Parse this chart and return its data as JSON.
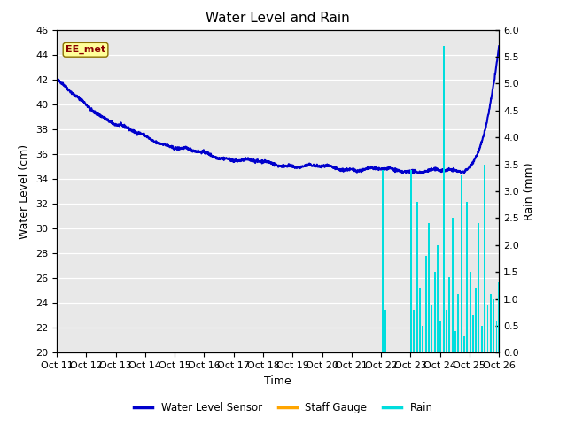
{
  "title": "Water Level and Rain",
  "xlabel": "Time",
  "ylabel_left": "Water Level (cm)",
  "ylabel_right": "Rain (mm)",
  "ylim_left": [
    20,
    46
  ],
  "ylim_right": [
    0.0,
    6.0
  ],
  "yticks_left": [
    20,
    22,
    24,
    26,
    28,
    30,
    32,
    34,
    36,
    38,
    40,
    42,
    44,
    46
  ],
  "yticks_right": [
    0.0,
    0.5,
    1.0,
    1.5,
    2.0,
    2.5,
    3.0,
    3.5,
    4.0,
    4.5,
    5.0,
    5.5,
    6.0
  ],
  "xtick_labels": [
    "Oct 11",
    "Oct 12",
    "Oct 13",
    "Oct 14",
    "Oct 15",
    "Oct 16",
    "Oct 17",
    "Oct 18",
    "Oct 19",
    "Oct 20",
    "Oct 21",
    "Oct 22",
    "Oct 23",
    "Oct 24",
    "Oct 25",
    "Oct 26"
  ],
  "annotation_text": "EE_met",
  "annotation_color": "#8B0000",
  "annotation_bg": "#FFFF99",
  "fig_bg": "#FFFFFF",
  "plot_bg": "#E8E8E8",
  "water_level_color": "#0000CC",
  "rain_color": "#00DDDD",
  "staff_gauge_color": "#FFA500",
  "legend_labels": [
    "Water Level Sensor",
    "Staff Gauge",
    "Rain"
  ],
  "legend_colors": [
    "#0000CC",
    "#FFA500",
    "#00DDDD"
  ],
  "grid_color": "#FFFFFF",
  "title_fontsize": 11,
  "label_fontsize": 9,
  "tick_fontsize": 8
}
